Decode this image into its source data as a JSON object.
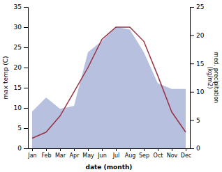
{
  "chart_data": {
    "type": "line",
    "categories": [
      "Jan",
      "Feb",
      "Mar",
      "Apr",
      "May",
      "Jun",
      "Jul",
      "Aug",
      "Sep",
      "Oct",
      "Nov",
      "Dec"
    ],
    "series": [
      {
        "type": "area",
        "axis": "y2",
        "color": "#b8c0e0",
        "values": [
          6.5,
          9.0,
          7.0,
          7.5,
          17.0,
          19.0,
          21.5,
          21.0,
          17.0,
          11.5,
          10.5,
          10.5
        ]
      },
      {
        "type": "line",
        "color": "#993344",
        "values": [
          2.5,
          4.0,
          8.0,
          14.0,
          20.0,
          27.0,
          30.0,
          30.0,
          26.5,
          18.0,
          9.0,
          4.0
        ]
      }
    ],
    "xlabel": "date (month)",
    "ylabel": "max temp (C)",
    "y2label": "med. precipitation\n(kg/m2)",
    "ylim": [
      0,
      35
    ],
    "yticks": [
      0,
      5,
      10,
      15,
      20,
      25,
      30,
      35
    ],
    "y2lim": [
      0,
      25
    ],
    "y2ticks": [
      0,
      5,
      10,
      15,
      20,
      25
    ]
  }
}
